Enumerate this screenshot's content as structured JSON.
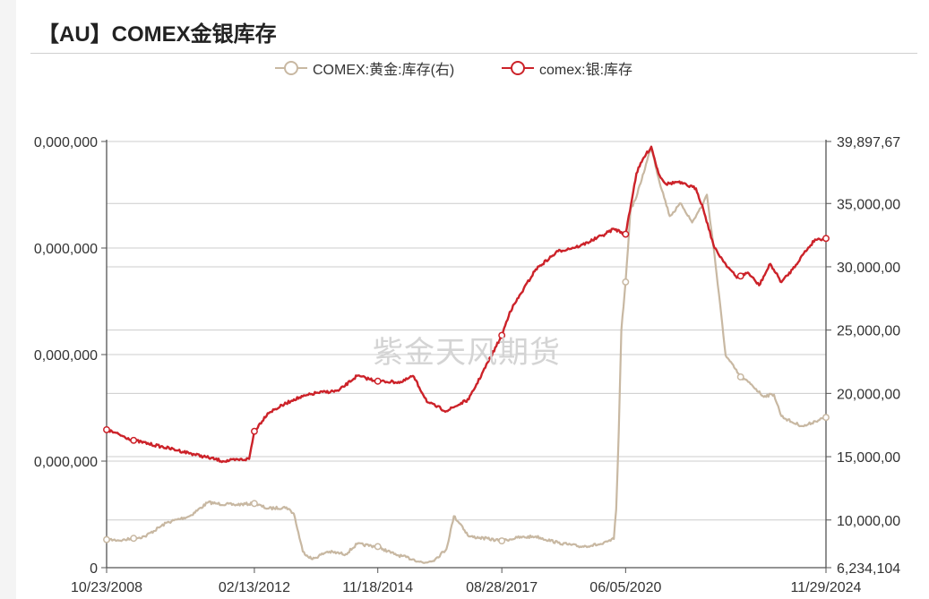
{
  "title": "【AU】COMEX金银库存",
  "watermark": "紫金天风期货",
  "colors": {
    "gold": "#c8b8a2",
    "silver": "#cc2229",
    "grid": "#cccccc",
    "axis": "#555555"
  },
  "chart_data": {
    "type": "line",
    "title": "【AU】COMEX金银库存",
    "x_ticks": [
      "10/23/2008",
      "02/13/2012",
      "11/18/2014",
      "08/28/2017",
      "06/05/2020",
      "11/29/2024"
    ],
    "xlim": [
      "2008-10-23",
      "2024-11-29"
    ],
    "y_left": {
      "ticks": [
        "0",
        "0,000,000",
        "0,000,000",
        "0,000,000",
        "0,000,000"
      ],
      "range": [
        0,
        400000000
      ],
      "note": "left tick labels are cropped at the image edge"
    },
    "y_right": {
      "ticks": [
        "6,234,104",
        "10,000,00",
        "15,000,00",
        "20,000,00",
        "25,000,00",
        "30,000,00",
        "35,000,00",
        "39,897,67"
      ],
      "range": [
        6234104,
        39897670
      ]
    },
    "legend": {
      "placement": "top-center",
      "items": [
        {
          "label": "COMEX:黄金:库存(右)",
          "series": "gold"
        },
        {
          "label": "comex:银:库存",
          "series": "silver"
        }
      ]
    },
    "series": [
      {
        "name": "COMEX:黄金:库存(右)",
        "axis": "right",
        "color": "#c8b8a2",
        "x": [
          "2008-10-23",
          "2009-03-01",
          "2009-09-01",
          "2010-03-01",
          "2010-09-01",
          "2011-02-01",
          "2011-04-01",
          "2011-09-01",
          "2012-02-13",
          "2012-06-01",
          "2012-11-01",
          "2013-01-01",
          "2013-03-15",
          "2013-06-01",
          "2013-10-01",
          "2014-03-01",
          "2014-06-01",
          "2014-11-18",
          "2015-01-01",
          "2015-04-01",
          "2015-09-01",
          "2015-12-01",
          "2016-03-01",
          "2016-06-01",
          "2016-08-01",
          "2016-10-01",
          "2016-12-01",
          "2017-03-01",
          "2017-08-28",
          "2018-01-01",
          "2018-06-01",
          "2018-12-01",
          "2019-06-01",
          "2019-12-01",
          "2020-03-01",
          "2020-03-20",
          "2020-04-10",
          "2020-05-01",
          "2020-06-05",
          "2020-07-15",
          "2020-09-01",
          "2021-01-01",
          "2021-03-01",
          "2021-06-01",
          "2021-09-01",
          "2021-12-01",
          "2022-03-01",
          "2022-04-01",
          "2022-06-01",
          "2022-09-01",
          "2023-01-01",
          "2023-04-01",
          "2023-07-01",
          "2023-10-01",
          "2023-12-01",
          "2024-03-01",
          "2024-06-01",
          "2024-09-01",
          "2024-11-29"
        ],
        "values": [
          8450000,
          8400000,
          8700000,
          9800000,
          10300000,
          11400000,
          11300000,
          11200000,
          11300000,
          10900000,
          11000000,
          10500000,
          7500000,
          6900000,
          7500000,
          7300000,
          8100000,
          7900000,
          7700000,
          7300000,
          6900000,
          6600000,
          6900000,
          7700000,
          10300000,
          9600000,
          8700000,
          8600000,
          8350000,
          8600000,
          8700000,
          8200000,
          7900000,
          8100000,
          8500000,
          10800000,
          17000000,
          25000000,
          28800000,
          34500000,
          35500000,
          39500000,
          37000000,
          34000000,
          35000000,
          33500000,
          35000000,
          35700000,
          31000000,
          23000000,
          21300000,
          20700000,
          19800000,
          19900000,
          18200000,
          17700000,
          17400000,
          17800000,
          18100000
        ]
      },
      {
        "name": "comex:银:库存",
        "axis": "left",
        "color": "#cc2229",
        "x": [
          "2008-10-23",
          "2009-06-01",
          "2010-06-01",
          "2011-06-01",
          "2012-01-01",
          "2012-02-13",
          "2012-06-01",
          "2013-01-01",
          "2013-07-01",
          "2014-01-01",
          "2014-06-01",
          "2014-11-18",
          "2015-06-01",
          "2015-09-01",
          "2016-01-01",
          "2016-06-01",
          "2016-12-01",
          "2017-08-28",
          "2017-11-01",
          "2018-06-01",
          "2018-12-01",
          "2019-06-01",
          "2019-12-01",
          "2020-03-01",
          "2020-06-05",
          "2020-09-01",
          "2020-11-01",
          "2021-01-01",
          "2021-03-01",
          "2021-05-01",
          "2021-08-01",
          "2022-01-01",
          "2022-03-01",
          "2022-06-01",
          "2022-09-01",
          "2022-12-01",
          "2023-03-01",
          "2023-06-01",
          "2023-09-01",
          "2023-12-01",
          "2024-03-01",
          "2024-06-01",
          "2024-09-01",
          "2024-11-29"
        ],
        "values": [
          129500000,
          119500000,
          110000000,
          100000000,
          102000000,
          128000000,
          145000000,
          158000000,
          164000000,
          166000000,
          180000000,
          175000000,
          174000000,
          180000000,
          155000000,
          147000000,
          158000000,
          218000000,
          240000000,
          280000000,
          297000000,
          302000000,
          312000000,
          318000000,
          313000000,
          370000000,
          385000000,
          395000000,
          370000000,
          360000000,
          362000000,
          356000000,
          337000000,
          300000000,
          285000000,
          272000000,
          277000000,
          265000000,
          285000000,
          268000000,
          280000000,
          295000000,
          308000000,
          309000000
        ]
      }
    ],
    "markers": {
      "gold": [
        "2008-10-23",
        "2009-06-01",
        "2012-02-13",
        "2014-11-18",
        "2017-08-28",
        "2020-06-05",
        "2023-01-01",
        "2024-11-29"
      ],
      "silver": [
        "2008-10-23",
        "2009-06-01",
        "2012-02-13",
        "2014-11-18",
        "2017-08-28",
        "2020-06-05",
        "2023-01-01",
        "2024-11-29"
      ]
    },
    "grid": true
  }
}
